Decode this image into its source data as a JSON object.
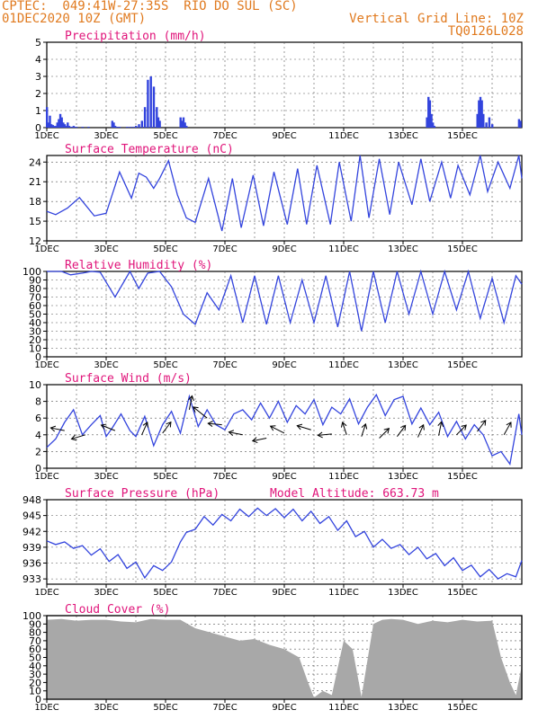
{
  "header": {
    "line1_left": "CPTEC:  049:41W-27:35S  RIO DO SUL (SC)",
    "line2_left": "01DEC2020 10Z (GMT)",
    "line1_right": "Vertical Grid Line: 10Z",
    "line2_right": "TQ0126L028"
  },
  "colors": {
    "header": "#e07a1f",
    "title": "#e0147a",
    "line": "#3344dd",
    "cloud": "#a8a8a8"
  },
  "chart_data": [
    {
      "type": "bar",
      "title": "Precipitation (mm/h)",
      "ylim": [
        0,
        5
      ],
      "yticks": [
        "0",
        "1",
        "2",
        "3",
        "4",
        "5"
      ],
      "xticks": [
        "1DEC",
        "3DEC",
        "5DEC",
        "7DEC",
        "9DEC",
        "11DEC",
        "13DEC",
        "15DEC"
      ],
      "x_days": [
        0.0,
        0.05,
        0.1,
        0.15,
        0.2,
        0.25,
        0.3,
        0.35,
        0.4,
        0.45,
        0.5,
        0.55,
        0.6,
        0.65,
        0.7,
        0.75,
        0.8,
        0.85,
        0.9,
        0.95,
        1.0,
        1.2,
        1.4,
        2.2,
        2.25,
        2.3,
        2.35,
        2.4,
        2.45,
        2.7,
        2.8,
        2.9,
        3.0,
        3.1,
        3.2,
        3.3,
        3.4,
        3.5,
        3.6,
        3.7,
        3.75,
        3.8,
        4.5,
        4.55,
        4.6,
        4.65,
        4.7,
        12.8,
        12.85,
        12.9,
        12.95,
        13.0,
        13.05,
        14.5,
        14.55,
        14.6,
        14.65,
        14.7,
        14.8,
        14.9,
        15.0,
        15.9,
        15.95
      ],
      "values": [
        1.2,
        0.3,
        0.7,
        0.2,
        0.15,
        0.1,
        0.1,
        0.3,
        0.5,
        0.8,
        0.6,
        0.3,
        0.2,
        0.1,
        0.3,
        0.1,
        0.05,
        0.05,
        0.1,
        0.05,
        0.05,
        0.05,
        0.05,
        0.4,
        0.3,
        0.1,
        0.05,
        0.05,
        0.05,
        0.05,
        0.05,
        0.05,
        0.1,
        0.2,
        0.4,
        1.2,
        2.8,
        3.0,
        2.4,
        1.2,
        0.6,
        0.4,
        0.6,
        0.4,
        0.6,
        0.3,
        0.1,
        0.6,
        1.8,
        1.6,
        0.8,
        0.3,
        0.1,
        0.8,
        1.6,
        1.8,
        1.6,
        0.8,
        0.3,
        0.6,
        0.2,
        0.5,
        0.4
      ]
    },
    {
      "type": "line",
      "title": "Surface Temperature (nC)",
      "ylim": [
        12,
        25
      ],
      "yticks": [
        "12",
        "15",
        "18",
        "21",
        "24"
      ],
      "xticks": [
        "1DEC",
        "3DEC",
        "5DEC",
        "7DEC",
        "9DEC",
        "11DEC",
        "13DEC",
        "15DEC"
      ],
      "x": [
        0.0,
        0.3,
        0.7,
        1.1,
        1.6,
        2.0,
        2.45,
        2.85,
        3.1,
        3.35,
        3.6,
        3.8,
        4.1,
        4.4,
        4.7,
        5.0,
        5.45,
        5.9,
        6.25,
        6.55,
        6.95,
        7.3,
        7.65,
        8.1,
        8.45,
        8.75,
        9.1,
        9.55,
        9.85,
        10.25,
        10.55,
        10.85,
        11.2,
        11.55,
        11.85,
        12.3,
        12.6,
        12.9,
        13.3,
        13.6,
        13.85,
        14.25,
        14.6,
        14.85,
        15.2,
        15.6,
        15.9,
        16.0
      ],
      "values": [
        16.5,
        16.0,
        17.0,
        18.6,
        15.8,
        16.2,
        22.5,
        18.5,
        22.3,
        21.7,
        20.0,
        21.5,
        24.2,
        19.0,
        15.5,
        14.8,
        21.5,
        13.5,
        21.5,
        14.0,
        22.0,
        14.3,
        22.5,
        14.5,
        23.0,
        14.5,
        23.5,
        14.5,
        24.0,
        15.0,
        25.0,
        15.5,
        24.5,
        16.0,
        24.0,
        17.5,
        24.5,
        18.0,
        24.0,
        18.5,
        23.5,
        19.0,
        25.0,
        19.5,
        24.0,
        20.0,
        25.0,
        21.5
      ]
    },
    {
      "type": "line",
      "title": "Relative Humidity (%)",
      "ylim": [
        0,
        100
      ],
      "yticks": [
        "0",
        "10",
        "20",
        "30",
        "40",
        "50",
        "60",
        "70",
        "80",
        "90",
        "100"
      ],
      "xticks": [
        "1DEC",
        "3DEC",
        "5DEC",
        "7DEC",
        "9DEC",
        "11DEC",
        "13DEC",
        "15DEC"
      ],
      "x": [
        0.0,
        0.5,
        0.8,
        1.2,
        1.5,
        1.8,
        2.3,
        2.8,
        3.1,
        3.4,
        3.8,
        4.2,
        4.6,
        5.0,
        5.4,
        5.8,
        6.2,
        6.6,
        7.0,
        7.4,
        7.8,
        8.2,
        8.6,
        9.0,
        9.4,
        9.8,
        10.2,
        10.6,
        11.0,
        11.4,
        11.8,
        12.2,
        12.6,
        13.0,
        13.4,
        13.8,
        14.2,
        14.6,
        15.0,
        15.4,
        15.8,
        16.0
      ],
      "values": [
        100,
        100,
        96,
        98,
        100,
        99,
        70,
        100,
        80,
        98,
        100,
        82,
        50,
        38,
        75,
        55,
        95,
        40,
        95,
        38,
        95,
        40,
        90,
        40,
        95,
        35,
        100,
        30,
        100,
        40,
        100,
        50,
        100,
        50,
        100,
        55,
        100,
        45,
        92,
        40,
        95,
        85
      ]
    },
    {
      "type": "line",
      "title": "Surface Wind (m/s)",
      "ylim": [
        0,
        10
      ],
      "yticks": [
        "0",
        "2",
        "4",
        "6",
        "8",
        "10"
      ],
      "xticks": [
        "1DEC",
        "3DEC",
        "5DEC",
        "7DEC",
        "9DEC",
        "11DEC",
        "13DEC",
        "15DEC"
      ],
      "x": [
        0.0,
        0.3,
        0.6,
        0.9,
        1.2,
        1.5,
        1.8,
        2.0,
        2.2,
        2.5,
        2.8,
        3.0,
        3.3,
        3.6,
        3.9,
        4.2,
        4.5,
        4.8,
        5.1,
        5.4,
        5.7,
        6.0,
        6.3,
        6.6,
        6.9,
        7.2,
        7.5,
        7.8,
        8.1,
        8.4,
        8.7,
        9.0,
        9.3,
        9.6,
        9.9,
        10.2,
        10.5,
        10.8,
        11.1,
        11.4,
        11.7,
        12.0,
        12.3,
        12.6,
        12.9,
        13.2,
        13.5,
        13.8,
        14.1,
        14.4,
        14.7,
        15.0,
        15.3,
        15.6,
        15.9,
        16.0
      ],
      "values": [
        2.5,
        3.5,
        5.5,
        7.0,
        4.0,
        5.2,
        6.3,
        3.8,
        4.8,
        6.5,
        4.5,
        3.8,
        6.2,
        2.7,
        5.2,
        6.8,
        4.2,
        8.6,
        5.0,
        7.0,
        5.2,
        4.6,
        6.5,
        7.0,
        5.8,
        7.8,
        6.0,
        8.0,
        5.5,
        7.5,
        6.5,
        8.2,
        5.2,
        7.3,
        6.5,
        8.3,
        5.3,
        7.3,
        8.8,
        6.3,
        8.2,
        8.6,
        5.3,
        7.2,
        5.2,
        6.7,
        3.8,
        5.6,
        3.5,
        5.2,
        4.0,
        1.5,
        2.0,
        0.5,
        6.5,
        4.0
      ]
    },
    {
      "type": "line",
      "title": "Surface Pressure (hPa)",
      "ylim": [
        932,
        948
      ],
      "yticks": [
        "933",
        "936",
        "939",
        "942",
        "945",
        "948"
      ],
      "xticks": [
        "1DEC",
        "3DEC",
        "5DEC",
        "7DEC",
        "9DEC",
        "11DEC",
        "13DEC",
        "15DEC"
      ],
      "x": [
        0.0,
        0.3,
        0.6,
        0.9,
        1.2,
        1.5,
        1.8,
        2.1,
        2.4,
        2.7,
        3.0,
        3.3,
        3.6,
        3.9,
        4.2,
        4.5,
        4.7,
        5.0,
        5.3,
        5.6,
        5.9,
        6.2,
        6.5,
        6.8,
        7.1,
        7.4,
        7.7,
        8.0,
        8.3,
        8.6,
        8.9,
        9.2,
        9.5,
        9.8,
        10.1,
        10.4,
        10.7,
        11.0,
        11.3,
        11.6,
        11.9,
        12.2,
        12.5,
        12.8,
        13.1,
        13.4,
        13.7,
        14.0,
        14.3,
        14.6,
        14.9,
        15.2,
        15.5,
        15.8,
        16.0
      ],
      "values": [
        940.2,
        939.5,
        940.0,
        938.8,
        939.3,
        937.5,
        938.7,
        936.3,
        937.6,
        935.0,
        936.2,
        933.2,
        935.5,
        934.6,
        936.2,
        940.0,
        941.8,
        942.4,
        944.8,
        943.2,
        945.2,
        944.0,
        946.2,
        944.8,
        946.4,
        945.0,
        946.3,
        944.6,
        946.2,
        944.0,
        945.8,
        943.5,
        944.8,
        942.2,
        944.0,
        941.0,
        942.0,
        939.0,
        940.5,
        938.8,
        939.5,
        937.6,
        939.0,
        936.8,
        937.8,
        935.5,
        937.0,
        934.6,
        935.6,
        933.4,
        934.8,
        933.0,
        934.0,
        933.4,
        936.5
      ]
    },
    {
      "type": "area",
      "title": "Cloud Cover (%)",
      "ylim": [
        0,
        100
      ],
      "yticks": [
        "0",
        "10",
        "20",
        "30",
        "40",
        "50",
        "60",
        "70",
        "80",
        "90",
        "100"
      ],
      "xticks": [
        "1DEC",
        "3DEC",
        "5DEC",
        "7DEC",
        "9DEC",
        "11DEC",
        "13DEC",
        "15DEC"
      ],
      "x": [
        0.0,
        0.5,
        1.0,
        1.5,
        2.0,
        2.5,
        3.0,
        3.5,
        4.0,
        4.5,
        5.0,
        5.5,
        6.0,
        6.5,
        7.0,
        7.5,
        8.0,
        8.5,
        8.8,
        9.0,
        9.3,
        9.6,
        10.0,
        10.3,
        10.6,
        11.0,
        11.3,
        11.6,
        12.0,
        12.5,
        13.0,
        13.5,
        14.0,
        14.5,
        15.0,
        15.3,
        15.6,
        15.8,
        16.0
      ],
      "values": [
        95,
        96,
        94,
        95,
        95,
        93,
        92,
        96,
        95,
        95,
        85,
        80,
        75,
        70,
        72,
        65,
        60,
        50,
        20,
        2,
        10,
        5,
        70,
        60,
        3,
        90,
        95,
        96,
        95,
        90,
        94,
        92,
        95,
        93,
        94,
        50,
        20,
        5,
        40
      ]
    }
  ],
  "annotations": {
    "model_altitude": "Model Altitude: 663.73 m"
  }
}
